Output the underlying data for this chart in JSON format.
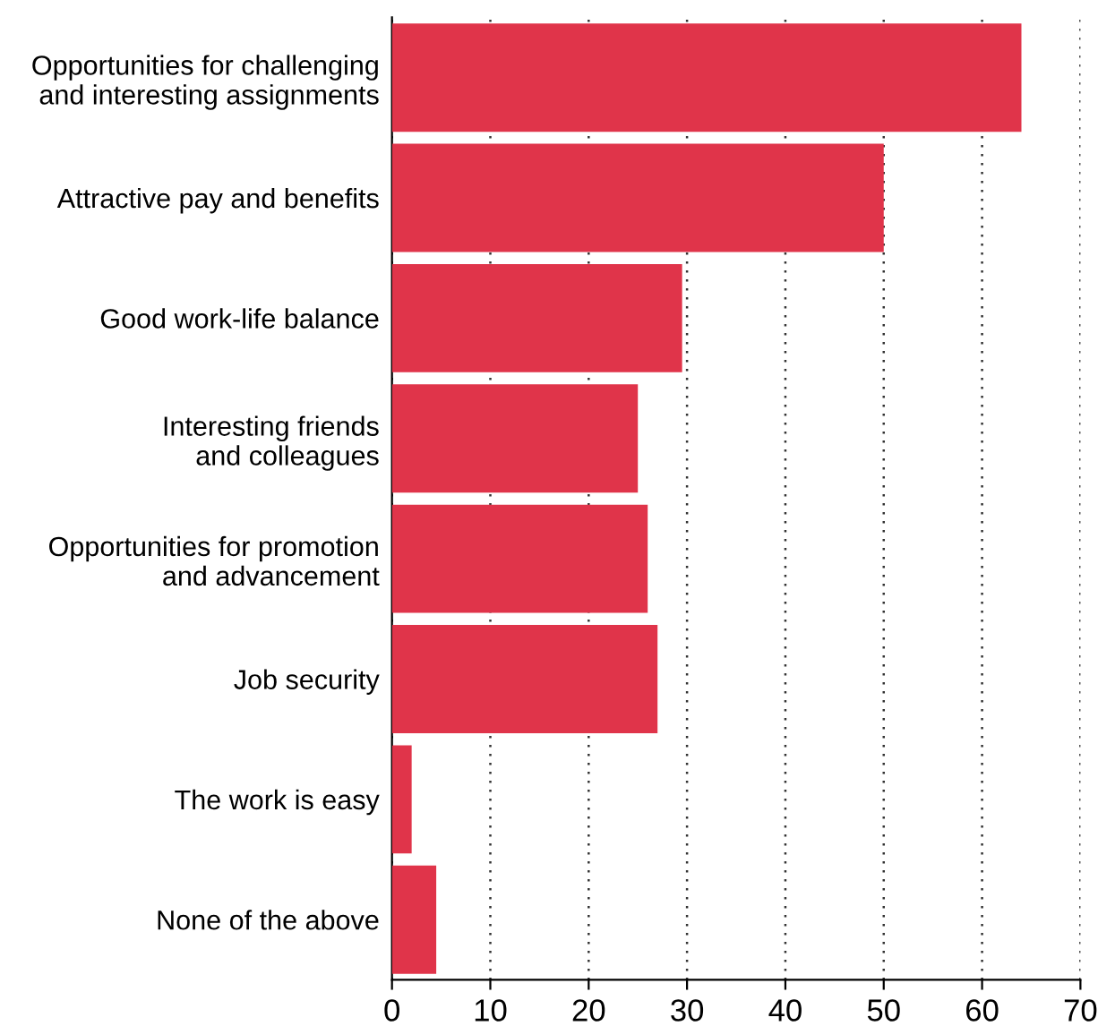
{
  "chart_data": {
    "type": "bar",
    "orientation": "horizontal",
    "categories": [
      "Opportunities for challenging\nand interesting assignments",
      "Attractive pay and benefits",
      "Good work-life balance",
      "Interesting friends\nand colleagues",
      "Opportunities for promotion\nand advancement",
      "Job security",
      "The work is easy",
      "None of the above"
    ],
    "values": [
      64,
      50,
      29.5,
      25,
      26,
      27,
      2,
      4.5
    ],
    "color": "#e0344a",
    "xlim": [
      0,
      70
    ],
    "xticks": [
      0,
      10,
      20,
      30,
      40,
      50,
      60,
      70
    ],
    "grid": "x"
  }
}
